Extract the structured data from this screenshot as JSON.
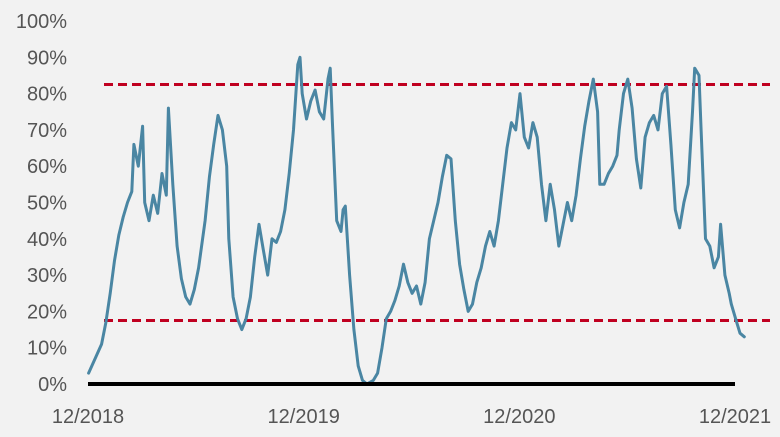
{
  "chart_data": {
    "type": "line",
    "title": "",
    "xlabel": "",
    "ylabel": "",
    "grid": false,
    "x_ticks": [
      {
        "label": "12/2018",
        "x": 2018.917
      },
      {
        "label": "12/2019",
        "x": 2019.917
      },
      {
        "label": "12/2020",
        "x": 2020.917
      },
      {
        "label": "12/2021",
        "x": 2021.917
      }
    ],
    "y_ticks": [
      {
        "label": "0%",
        "y": 0
      },
      {
        "label": "10%",
        "y": 10
      },
      {
        "label": "20%",
        "y": 20
      },
      {
        "label": "30%",
        "y": 30
      },
      {
        "label": "40%",
        "y": 40
      },
      {
        "label": "50%",
        "y": 50
      },
      {
        "label": "60%",
        "y": 60
      },
      {
        "label": "70%",
        "y": 70
      },
      {
        "label": "80%",
        "y": 80
      },
      {
        "label": "90%",
        "y": 90
      },
      {
        "label": "100%",
        "y": 100
      }
    ],
    "xlim": [
      2018.917,
      2021.917
    ],
    "ylim": [
      0,
      100
    ],
    "reference_lines": [
      {
        "y": 82.5,
        "color": "#c00020",
        "style": "dashed"
      },
      {
        "y": 17.5,
        "color": "#c00020",
        "style": "dashed"
      }
    ],
    "series": [
      {
        "color": "#4a86a3",
        "points": [
          [
            2018.92,
            3
          ],
          [
            2018.95,
            7
          ],
          [
            2018.98,
            11
          ],
          [
            2019.0,
            17
          ],
          [
            2019.02,
            25
          ],
          [
            2019.04,
            34
          ],
          [
            2019.06,
            41
          ],
          [
            2019.08,
            46
          ],
          [
            2019.1,
            50
          ],
          [
            2019.12,
            53
          ],
          [
            2019.13,
            66
          ],
          [
            2019.15,
            60
          ],
          [
            2019.17,
            71
          ],
          [
            2019.18,
            50
          ],
          [
            2019.2,
            45
          ],
          [
            2019.22,
            52
          ],
          [
            2019.24,
            47
          ],
          [
            2019.26,
            58
          ],
          [
            2019.28,
            52
          ],
          [
            2019.29,
            76
          ],
          [
            2019.31,
            55
          ],
          [
            2019.33,
            38
          ],
          [
            2019.35,
            29
          ],
          [
            2019.37,
            24
          ],
          [
            2019.39,
            22
          ],
          [
            2019.41,
            26
          ],
          [
            2019.43,
            32
          ],
          [
            2019.46,
            45
          ],
          [
            2019.48,
            57
          ],
          [
            2019.5,
            66
          ],
          [
            2019.52,
            74
          ],
          [
            2019.54,
            70
          ],
          [
            2019.56,
            60
          ],
          [
            2019.57,
            40
          ],
          [
            2019.59,
            24
          ],
          [
            2019.61,
            18
          ],
          [
            2019.63,
            15
          ],
          [
            2019.65,
            18
          ],
          [
            2019.67,
            24
          ],
          [
            2019.69,
            35
          ],
          [
            2019.71,
            44
          ],
          [
            2019.73,
            37
          ],
          [
            2019.75,
            30
          ],
          [
            2019.77,
            40
          ],
          [
            2019.79,
            39
          ],
          [
            2019.81,
            42
          ],
          [
            2019.83,
            48
          ],
          [
            2019.85,
            58
          ],
          [
            2019.87,
            70
          ],
          [
            2019.89,
            88
          ],
          [
            2019.9,
            90
          ],
          [
            2019.91,
            80
          ],
          [
            2019.93,
            73
          ],
          [
            2019.95,
            78
          ],
          [
            2019.97,
            81
          ],
          [
            2019.99,
            75
          ],
          [
            2020.01,
            73
          ],
          [
            2020.03,
            84
          ],
          [
            2020.04,
            87
          ],
          [
            2020.05,
            72
          ],
          [
            2020.07,
            45
          ],
          [
            2020.09,
            42
          ],
          [
            2020.1,
            48
          ],
          [
            2020.11,
            49
          ],
          [
            2020.13,
            30
          ],
          [
            2020.15,
            15
          ],
          [
            2020.17,
            5
          ],
          [
            2020.19,
            1
          ],
          [
            2020.21,
            0
          ],
          [
            2020.24,
            1
          ],
          [
            2020.26,
            3
          ],
          [
            2020.28,
            10
          ],
          [
            2020.3,
            18
          ],
          [
            2020.32,
            20
          ],
          [
            2020.34,
            23
          ],
          [
            2020.36,
            27
          ],
          [
            2020.38,
            33
          ],
          [
            2020.4,
            28
          ],
          [
            2020.42,
            25
          ],
          [
            2020.44,
            27
          ],
          [
            2020.46,
            22
          ],
          [
            2020.48,
            28
          ],
          [
            2020.5,
            40
          ],
          [
            2020.52,
            45
          ],
          [
            2020.54,
            50
          ],
          [
            2020.56,
            57
          ],
          [
            2020.58,
            63
          ],
          [
            2020.6,
            62
          ],
          [
            2020.62,
            45
          ],
          [
            2020.64,
            33
          ],
          [
            2020.66,
            26
          ],
          [
            2020.68,
            20
          ],
          [
            2020.7,
            22
          ],
          [
            2020.72,
            28
          ],
          [
            2020.74,
            32
          ],
          [
            2020.76,
            38
          ],
          [
            2020.78,
            42
          ],
          [
            2020.8,
            38
          ],
          [
            2020.82,
            45
          ],
          [
            2020.84,
            55
          ],
          [
            2020.86,
            65
          ],
          [
            2020.88,
            72
          ],
          [
            2020.9,
            70
          ],
          [
            2020.92,
            80
          ],
          [
            2020.94,
            68
          ],
          [
            2020.96,
            65
          ],
          [
            2020.98,
            72
          ],
          [
            2021.0,
            68
          ],
          [
            2021.02,
            55
          ],
          [
            2021.04,
            45
          ],
          [
            2021.06,
            55
          ],
          [
            2021.08,
            48
          ],
          [
            2021.1,
            38
          ],
          [
            2021.12,
            44
          ],
          [
            2021.14,
            50
          ],
          [
            2021.16,
            45
          ],
          [
            2021.18,
            52
          ],
          [
            2021.2,
            62
          ],
          [
            2021.22,
            71
          ],
          [
            2021.24,
            78
          ],
          [
            2021.26,
            84
          ],
          [
            2021.28,
            75
          ],
          [
            2021.29,
            55
          ],
          [
            2021.31,
            55
          ],
          [
            2021.33,
            58
          ],
          [
            2021.35,
            60
          ],
          [
            2021.37,
            63
          ],
          [
            2021.38,
            70
          ],
          [
            2021.4,
            80
          ],
          [
            2021.42,
            84
          ],
          [
            2021.44,
            76
          ],
          [
            2021.46,
            62
          ],
          [
            2021.48,
            54
          ],
          [
            2021.5,
            68
          ],
          [
            2021.52,
            72
          ],
          [
            2021.54,
            74
          ],
          [
            2021.56,
            70
          ],
          [
            2021.58,
            80
          ],
          [
            2021.6,
            82
          ],
          [
            2021.62,
            66
          ],
          [
            2021.64,
            48
          ],
          [
            2021.66,
            43
          ],
          [
            2021.68,
            50
          ],
          [
            2021.7,
            55
          ],
          [
            2021.72,
            75
          ],
          [
            2021.73,
            87
          ],
          [
            2021.75,
            85
          ],
          [
            2021.76,
            70
          ],
          [
            2021.78,
            40
          ],
          [
            2021.8,
            38
          ],
          [
            2021.82,
            32
          ],
          [
            2021.84,
            35
          ],
          [
            2021.85,
            44
          ],
          [
            2021.87,
            30
          ],
          [
            2021.89,
            25
          ],
          [
            2021.9,
            22
          ],
          [
            2021.92,
            18
          ],
          [
            2021.94,
            14
          ],
          [
            2021.96,
            13
          ]
        ]
      }
    ],
    "baseline": {
      "y": 0,
      "color": "#000000"
    }
  }
}
